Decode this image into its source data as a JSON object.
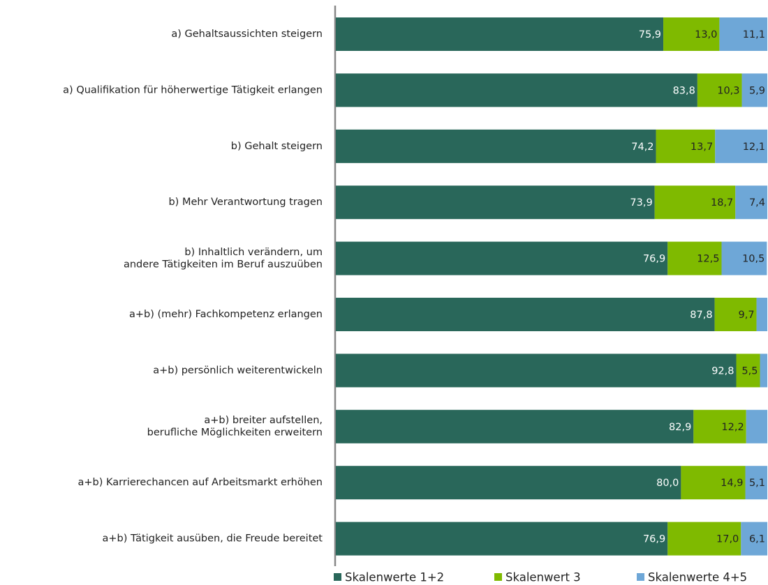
{
  "chart_data": {
    "type": "stacked_barh",
    "categories": [
      "a) Gehaltsaussichten steigern",
      "a) Qualifikation für höherwertige Tätigkeit erlangen",
      "b) Gehalt steigern",
      "b) Mehr Verantwortung tragen",
      "b) Inhaltlich verändern, um\nandere Tätigkeiten im Beruf auszuüben",
      "a+b) (mehr) Fachkompetenz erlangen",
      "a+b) persönlich weiterentwickeln",
      "a+b) breiter aufstellen,\nberufliche Möglichkeiten erweitern",
      "a+b) Karrierechancen auf Arbeitsmarkt erhöhen",
      "a+b) Tätigkeit ausüben, die Freude bereitet"
    ],
    "series": [
      {
        "name": "Skalenwerte 1+2",
        "color": "#29675a",
        "label_color": "#ffffff",
        "values": [
          75.9,
          83.8,
          74.2,
          73.9,
          76.9,
          87.8,
          92.8,
          82.9,
          80.0,
          76.9
        ],
        "value_labels": [
          "75,9",
          "83,8",
          "74,2",
          "73,9",
          "76,9",
          "87,8",
          "92,8",
          "82,9",
          "80,0",
          "76,9"
        ]
      },
      {
        "name": "Skalenwert 3",
        "color": "#7fba00",
        "label_color": "#222222",
        "values": [
          13.0,
          10.3,
          13.7,
          18.7,
          12.5,
          9.7,
          5.5,
          12.2,
          14.9,
          17.0
        ],
        "value_labels": [
          "13,0",
          "10,3",
          "13,7",
          "18,7",
          "12,5",
          "9,7",
          "5,5",
          "12,2",
          "14,9",
          "17,0"
        ]
      },
      {
        "name": "Skalenwerte 4+5",
        "color": "#6ea7d7",
        "label_color": "#222222",
        "values": [
          11.1,
          5.9,
          12.1,
          7.4,
          10.5,
          2.5,
          1.7,
          4.9,
          5.1,
          6.1
        ],
        "value_labels": [
          "11,1",
          "5,9",
          "12,1",
          "7,4",
          "10,5",
          null,
          null,
          null,
          "5,1",
          "6,1"
        ]
      }
    ],
    "xlim": [
      0,
      100
    ],
    "legend": "bottom"
  }
}
